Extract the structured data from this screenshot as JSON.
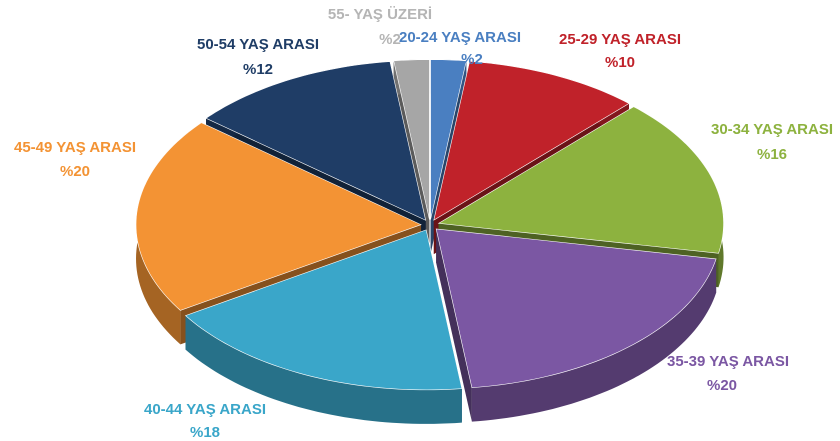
{
  "chart_data": {
    "type": "pie",
    "categories": [
      "20-24 YAŞ ARASI",
      "25-29 YAŞ ARASI",
      "30-34 YAŞ ARASI",
      "35-39 YAŞ ARASI",
      "40-44 YAŞ ARASI",
      "45-49 YAŞ ARASI",
      "50-54 YAŞ ARASI",
      "55- YAŞ ÜZERİ"
    ],
    "values": [
      2,
      10,
      16,
      20,
      18,
      20,
      12,
      2
    ],
    "value_labels": [
      "%2",
      "%10",
      "%16",
      "%20",
      "%18",
      "%20",
      "%12",
      "%2"
    ],
    "colors": [
      "#4a7fc1",
      "#c0222a",
      "#8db23f",
      "#7b57a3",
      "#3aa6c9",
      "#f39334",
      "#1f3d66",
      "#a6a6a6"
    ]
  }
}
